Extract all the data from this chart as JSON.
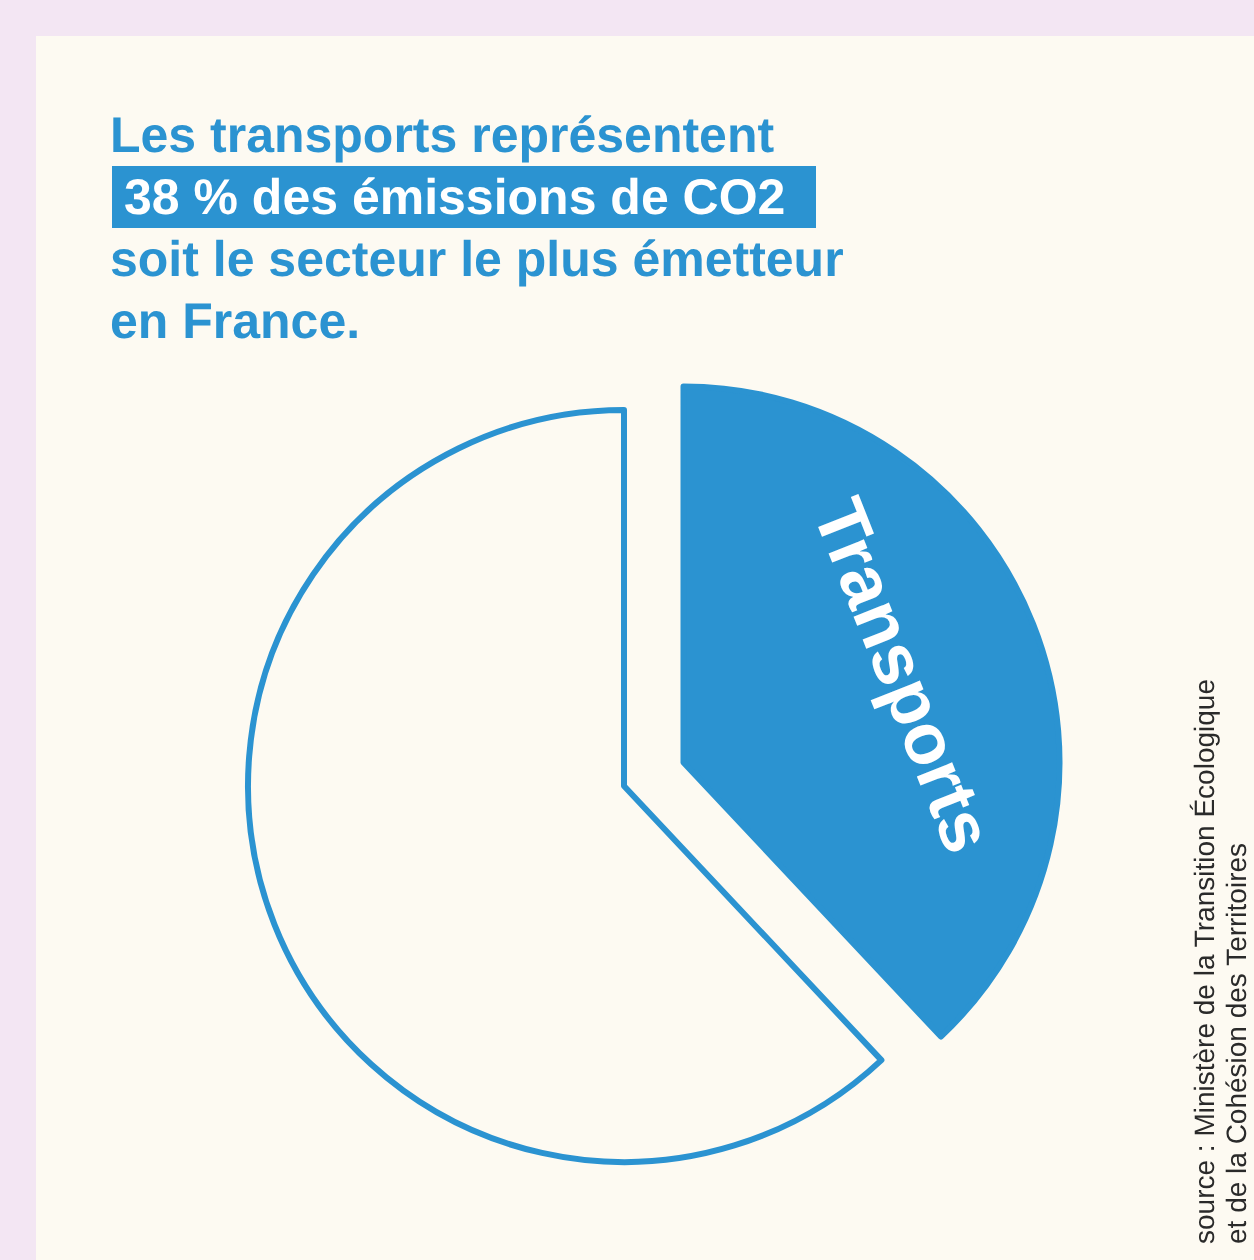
{
  "chart_data": {
    "type": "pie",
    "title": "Les transports représentent\n38 % des émissions de CO2\nsoit le secteur le plus émetteur\nen France.",
    "categories": [
      "Transports",
      null
    ],
    "values": [
      38,
      62
    ],
    "colors": [
      "#2b93d1",
      "#fdfaf2"
    ],
    "annotations": [
      "source : Ministère de la Transition Écologique\net de la Cohésion des Territoires"
    ]
  }
}
